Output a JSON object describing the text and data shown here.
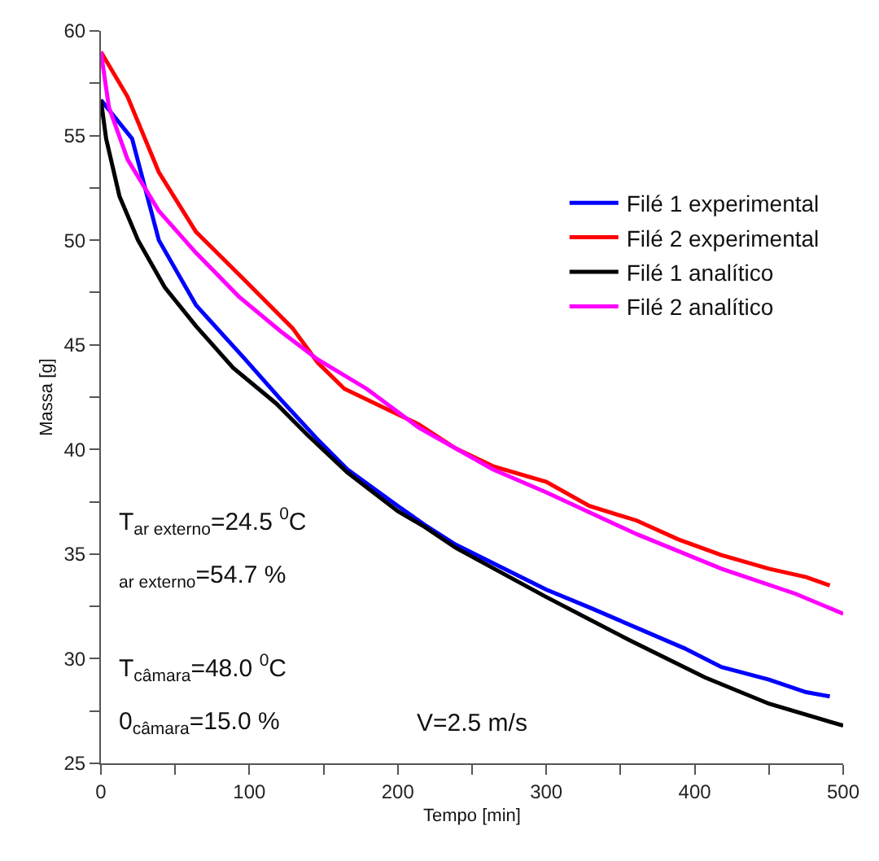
{
  "chart_data": {
    "type": "line",
    "xlabel": "Tempo [min]",
    "ylabel": "Massa [g]",
    "xlim": [
      0,
      500
    ],
    "ylim": [
      25,
      60
    ],
    "xticks": [
      0,
      {
        "value": 50,
        "label": null
      },
      100,
      {
        "value": 150,
        "label": null
      },
      200,
      {
        "value": 250,
        "label": null
      },
      300,
      {
        "value": 350,
        "label": null
      },
      400,
      {
        "value": 450,
        "label": null
      },
      500
    ],
    "yticks": [
      25,
      {
        "value": 27.5,
        "label": null
      },
      30,
      {
        "value": 32.5,
        "label": null
      },
      35,
      {
        "value": 37.5,
        "label": null
      },
      40,
      {
        "value": 42.5,
        "label": null
      },
      45,
      {
        "value": 47.5,
        "label": null
      },
      50,
      {
        "value": 52.5,
        "label": null
      },
      55,
      {
        "value": 57.5,
        "label": null
      },
      60
    ],
    "legend": "top right",
    "marker": "none",
    "line_style": "solid",
    "series": [
      {
        "name": "Filé 1 experimental",
        "color": "#0000ff",
        "x": [
          0,
          21,
          39,
          64,
          96,
          121,
          145,
          166,
          200,
          218,
          239,
          300,
          329,
          393,
          418,
          450,
          475,
          491
        ],
        "values": [
          56.7,
          54.85,
          50.0,
          46.9,
          44.4,
          42.4,
          40.55,
          39.05,
          37.3,
          36.4,
          35.45,
          33.3,
          32.45,
          30.5,
          29.6,
          29.0,
          28.4,
          28.2
        ]
      },
      {
        "name": "Filé 2 experimental",
        "color": "#ff0000",
        "x": [
          0,
          18,
          39,
          64,
          96,
          129,
          146,
          164,
          214,
          239,
          264,
          300,
          329,
          361,
          389,
          418,
          450,
          475,
          491
        ],
        "values": [
          59.0,
          56.85,
          53.25,
          50.4,
          48.15,
          45.8,
          44.15,
          42.9,
          41.2,
          40.05,
          39.2,
          38.45,
          37.3,
          36.6,
          35.7,
          34.95,
          34.3,
          33.9,
          33.5
        ]
      },
      {
        "name": "Filé 1 analítico",
        "color": "#000000",
        "x": [
          0,
          3.5,
          12.5,
          25,
          43,
          64,
          89,
          118,
          139,
          166,
          200,
          218,
          239,
          300,
          357,
          407,
          450,
          500
        ],
        "values": [
          56.7,
          54.85,
          52.1,
          50.0,
          47.75,
          45.9,
          43.9,
          42.2,
          40.7,
          38.9,
          37.05,
          36.3,
          35.3,
          32.95,
          30.85,
          29.1,
          27.85,
          26.8
        ]
      },
      {
        "name": "Filé 2 analítico",
        "color": "#ff00ff",
        "x": [
          0,
          5.4,
          18,
          39,
          64,
          93,
          121,
          146,
          179,
          214,
          264,
          300,
          361,
          418,
          468,
          500
        ],
        "values": [
          59.0,
          56.35,
          53.85,
          51.4,
          49.4,
          47.3,
          45.65,
          44.3,
          42.9,
          41.05,
          39.05,
          37.95,
          35.95,
          34.3,
          33.1,
          32.15
        ]
      }
    ],
    "annotations": [
      "T$_{ar externo}$=24.5 $^{0}$C",
      "$_{ar externo}$=54.7 %",
      "T$_{câmara}$=48.0 $^{0}$C",
      "0$_{câmara}$=15.0 %",
      "V=2.5 m/s"
    ]
  }
}
